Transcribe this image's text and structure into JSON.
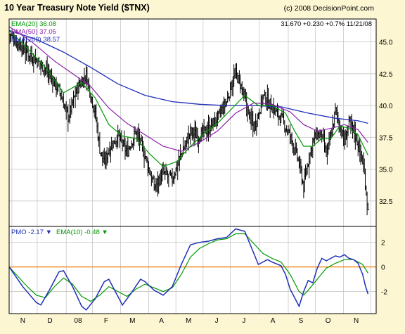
{
  "header": {
    "title": "10 Year Treasury Note Yield ($TNX)",
    "copyright": "(c) 2008 DecisionPoint.com"
  },
  "quote": {
    "last": "31.670",
    "change": "+0.230",
    "pct": "+0.7%",
    "date": "11/21/08"
  },
  "colors": {
    "background": "#fdf6d2",
    "plot_bg": "#ffffff",
    "grid": "#c8c8c8",
    "price": "#000000",
    "ema20": "#009900",
    "ema50": "#8b1fa8",
    "ema200": "#1d2fb8",
    "pmo": "#1d2fb8",
    "pmo_ema": "#009900",
    "zero_line": "#f07800"
  },
  "chart_data": [
    {
      "type": "ohlc",
      "title": "10 Year Treasury Note Yield ($TNX)",
      "x_labels": [
        "N",
        "D",
        "08",
        "F",
        "M",
        "A",
        "M",
        "J",
        "J",
        "A",
        "S",
        "O",
        "N"
      ],
      "y_ticks": [
        "45.0",
        "42.5",
        "40.0",
        "37.5",
        "35.0",
        "32.5"
      ],
      "ylim": [
        30.5,
        46.8
      ],
      "grid": true,
      "legend_position": "top-left",
      "series": [
        {
          "name": "EMA(20)",
          "label": "36.08",
          "color_key": "ema20"
        },
        {
          "name": "EMA(50)",
          "label": "37.05",
          "color_key": "ema50"
        },
        {
          "name": "EMA(200)",
          "label": "38.57",
          "color_key": "ema200"
        }
      ],
      "price_points": [
        [
          0,
          45.6
        ],
        [
          4,
          44.2
        ],
        [
          8,
          42.9
        ],
        [
          11,
          41.2
        ],
        [
          13,
          39.1
        ],
        [
          15,
          41.3
        ],
        [
          17,
          42.4
        ],
        [
          19,
          39.4
        ],
        [
          20,
          36.6
        ],
        [
          21,
          35.4
        ],
        [
          22,
          36.6
        ],
        [
          24,
          37.6
        ],
        [
          26,
          36.3
        ],
        [
          28,
          38.0
        ],
        [
          30,
          36.0
        ],
        [
          31,
          34.8
        ],
        [
          32,
          33.6
        ],
        [
          34,
          34.7
        ],
        [
          36,
          34.2
        ],
        [
          38,
          36.2
        ],
        [
          40,
          37.9
        ],
        [
          42,
          37.6
        ],
        [
          44,
          38.2
        ],
        [
          46,
          39.0
        ],
        [
          48,
          40.3
        ],
        [
          49,
          41.6
        ],
        [
          50,
          42.5
        ],
        [
          51,
          41.7
        ],
        [
          52,
          40.4
        ],
        [
          53,
          39.2
        ],
        [
          54,
          38.3
        ],
        [
          55,
          39.4
        ],
        [
          56,
          40.7
        ],
        [
          57,
          40.4
        ],
        [
          58,
          39.9
        ],
        [
          60,
          39.0
        ],
        [
          62,
          37.6
        ],
        [
          63,
          36.6
        ],
        [
          64,
          35.4
        ],
        [
          65,
          33.6
        ],
        [
          66,
          35.6
        ],
        [
          67,
          37.2
        ],
        [
          68,
          37.7
        ],
        [
          69,
          37.6
        ],
        [
          70,
          36.1
        ],
        [
          71,
          37.6
        ],
        [
          72,
          39.6
        ],
        [
          73,
          38.4
        ],
        [
          74,
          37.1
        ],
        [
          75,
          38.6
        ],
        [
          76,
          38.1
        ],
        [
          77,
          37.0
        ],
        [
          78,
          35.6
        ],
        [
          78.6,
          34.0
        ],
        [
          79.2,
          31.7
        ]
      ],
      "ema20_points": [
        [
          0,
          45.9
        ],
        [
          4,
          44.5
        ],
        [
          8,
          43.0
        ],
        [
          12,
          41.0
        ],
        [
          16,
          41.8
        ],
        [
          19,
          40.6
        ],
        [
          22,
          38.5
        ],
        [
          25,
          37.6
        ],
        [
          28,
          37.4
        ],
        [
          31,
          36.2
        ],
        [
          34,
          35.2
        ],
        [
          37,
          35.6
        ],
        [
          40,
          36.8
        ],
        [
          43,
          37.8
        ],
        [
          46,
          38.6
        ],
        [
          49,
          39.7
        ],
        [
          52,
          40.8
        ],
        [
          55,
          40.0
        ],
        [
          58,
          40.0
        ],
        [
          61,
          39.4
        ],
        [
          63,
          38.0
        ],
        [
          65,
          36.8
        ],
        [
          67,
          36.8
        ],
        [
          69,
          37.4
        ],
        [
          71,
          37.4
        ],
        [
          73,
          38.4
        ],
        [
          75,
          38.2
        ],
        [
          77,
          37.7
        ],
        [
          79.2,
          36.1
        ]
      ],
      "ema50_points": [
        [
          0,
          46.2
        ],
        [
          5,
          45.0
        ],
        [
          10,
          43.5
        ],
        [
          14,
          42.5
        ],
        [
          18,
          41.5
        ],
        [
          22,
          39.8
        ],
        [
          26,
          38.6
        ],
        [
          30,
          37.7
        ],
        [
          34,
          36.8
        ],
        [
          38,
          36.4
        ],
        [
          42,
          37.1
        ],
        [
          46,
          38.0
        ],
        [
          50,
          39.4
        ],
        [
          54,
          40.2
        ],
        [
          58,
          40.1
        ],
        [
          62,
          39.5
        ],
        [
          65,
          38.5
        ],
        [
          68,
          38.0
        ],
        [
          71,
          38.2
        ],
        [
          74,
          38.5
        ],
        [
          77,
          38.1
        ],
        [
          79.2,
          37.1
        ]
      ],
      "ema200_points": [
        [
          0,
          45.9
        ],
        [
          6,
          45.2
        ],
        [
          12,
          44.2
        ],
        [
          18,
          43.0
        ],
        [
          24,
          41.7
        ],
        [
          30,
          40.8
        ],
        [
          36,
          40.3
        ],
        [
          42,
          40.1
        ],
        [
          48,
          40.0
        ],
        [
          54,
          40.0
        ],
        [
          60,
          39.9
        ],
        [
          66,
          39.4
        ],
        [
          72,
          39.0
        ],
        [
          77,
          38.8
        ],
        [
          79.2,
          38.6
        ]
      ]
    },
    {
      "type": "line",
      "title": "PMO",
      "y_ticks": [
        "2",
        "0",
        "-2"
      ],
      "ylim": [
        -3.8,
        3.3
      ],
      "grid": true,
      "legend_position": "top-left",
      "series": [
        {
          "name": "PMO",
          "label": "-2.17",
          "arrow": "down",
          "color_key": "pmo"
        },
        {
          "name": "EMA(10)",
          "label": "-0.48",
          "arrow": "down",
          "color_key": "pmo_ema"
        }
      ],
      "pmo_points": [
        [
          0,
          0.0
        ],
        [
          3,
          -1.6
        ],
        [
          6,
          -2.9
        ],
        [
          7,
          -3.1
        ],
        [
          9,
          -1.8
        ],
        [
          11,
          -0.4
        ],
        [
          12,
          -0.3
        ],
        [
          14,
          -1.6
        ],
        [
          16,
          -3.2
        ],
        [
          17,
          -3.5
        ],
        [
          19,
          -2.6
        ],
        [
          21,
          -1.2
        ],
        [
          22,
          -1.0
        ],
        [
          24,
          -2.4
        ],
        [
          25,
          -3.1
        ],
        [
          27,
          -2.1
        ],
        [
          29,
          -1.0
        ],
        [
          30,
          -1.2
        ],
        [
          32,
          -1.9
        ],
        [
          34,
          -2.3
        ],
        [
          36,
          -1.6
        ],
        [
          38,
          0.2
        ],
        [
          40,
          1.8
        ],
        [
          42,
          2.0
        ],
        [
          44,
          2.1
        ],
        [
          46,
          2.3
        ],
        [
          48,
          2.4
        ],
        [
          50,
          3.1
        ],
        [
          52,
          2.9
        ],
        [
          54,
          1.1
        ],
        [
          55,
          0.2
        ],
        [
          57,
          0.6
        ],
        [
          58,
          0.4
        ],
        [
          60,
          0.1
        ],
        [
          61,
          -0.6
        ],
        [
          62,
          -1.8
        ],
        [
          64,
          -3.2
        ],
        [
          65,
          -2.0
        ],
        [
          66,
          -1.1
        ],
        [
          67,
          -1.3
        ],
        [
          68,
          -0.1
        ],
        [
          69,
          0.7
        ],
        [
          70,
          0.5
        ],
        [
          72,
          0.9
        ],
        [
          73,
          0.8
        ],
        [
          74,
          1.0
        ],
        [
          75,
          0.7
        ],
        [
          76,
          0.6
        ],
        [
          77,
          0.3
        ],
        [
          78,
          -0.6
        ],
        [
          78.6,
          -1.5
        ],
        [
          79.2,
          -2.2
        ]
      ],
      "pmo_ema_points": [
        [
          0,
          0.0
        ],
        [
          2,
          -0.8
        ],
        [
          4,
          -1.6
        ],
        [
          6,
          -2.3
        ],
        [
          8,
          -2.5
        ],
        [
          10,
          -1.6
        ],
        [
          12,
          -0.9
        ],
        [
          14,
          -1.4
        ],
        [
          16,
          -2.4
        ],
        [
          18,
          -2.8
        ],
        [
          20,
          -2.3
        ],
        [
          22,
          -1.6
        ],
        [
          24,
          -2.0
        ],
        [
          26,
          -2.4
        ],
        [
          28,
          -1.8
        ],
        [
          30,
          -1.4
        ],
        [
          32,
          -1.7
        ],
        [
          34,
          -2.0
        ],
        [
          36,
          -1.7
        ],
        [
          38,
          -0.6
        ],
        [
          40,
          0.8
        ],
        [
          42,
          1.5
        ],
        [
          44,
          1.9
        ],
        [
          46,
          2.2
        ],
        [
          48,
          2.3
        ],
        [
          50,
          2.7
        ],
        [
          52,
          2.7
        ],
        [
          54,
          1.9
        ],
        [
          56,
          1.1
        ],
        [
          58,
          0.7
        ],
        [
          60,
          0.4
        ],
        [
          62,
          -0.6
        ],
        [
          64,
          -2.0
        ],
        [
          65,
          -2.3
        ],
        [
          66,
          -1.9
        ],
        [
          68,
          -1.0
        ],
        [
          70,
          -0.1
        ],
        [
          72,
          0.3
        ],
        [
          74,
          0.6
        ],
        [
          76,
          0.6
        ],
        [
          78,
          0.2
        ],
        [
          79.2,
          -0.5
        ]
      ]
    }
  ]
}
